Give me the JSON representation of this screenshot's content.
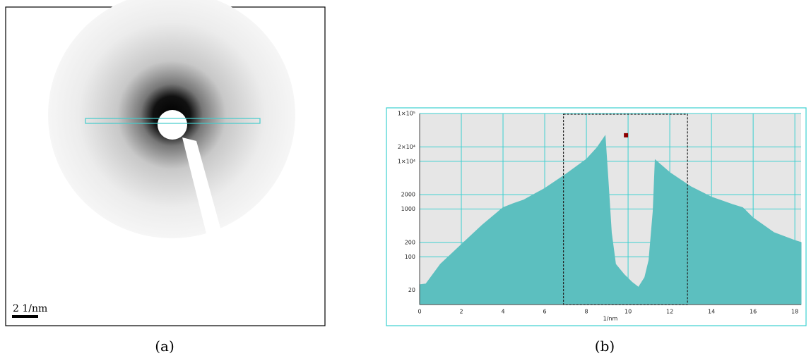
{
  "figure": {
    "panel_a": {
      "scale_label": "2 1/nm",
      "caption": "(a)"
    },
    "panel_b_caption": "(b)"
  },
  "chart_data": {
    "type": "area",
    "xlabel": "1/nm",
    "x": [
      0,
      0.3,
      1,
      2,
      3,
      4,
      4.5,
      5,
      6,
      7,
      8,
      8.5,
      8.9,
      9.05,
      9.2,
      9.4,
      9.8,
      10.2,
      10.5,
      10.8,
      11.0,
      11.2,
      11.3,
      12,
      13,
      14,
      15,
      15.5,
      16,
      17,
      18,
      18.3
    ],
    "values": [
      26,
      27,
      70,
      180,
      460,
      1070,
      1300,
      1550,
      2700,
      5300,
      11000,
      19000,
      34000,
      3500,
      320,
      70,
      43,
      29,
      23,
      37,
      85,
      900,
      10700,
      5800,
      2950,
      1780,
      1250,
      1070,
      650,
      320,
      220,
      200
    ],
    "color": "#5cbfbf",
    "xlim": [
      0,
      18.3
    ],
    "xticks": [
      0,
      2,
      4,
      6,
      8,
      10,
      12,
      14,
      16,
      18
    ],
    "ylim": [
      10,
      100000
    ],
    "yscale": "log",
    "yticks": [
      {
        "value": 100000,
        "label": "1×10⁵"
      },
      {
        "value": 20000,
        "label": "2×10⁴"
      },
      {
        "value": 10000,
        "label": "1×10⁴"
      },
      2000,
      1000,
      200,
      100,
      20
    ],
    "grid": true,
    "grid_color": "#3cd0d0",
    "selection_x": [
      6.9,
      12.85
    ],
    "marker": {
      "x": 9.9,
      "y": 35000,
      "color": "#8b0000"
    }
  }
}
